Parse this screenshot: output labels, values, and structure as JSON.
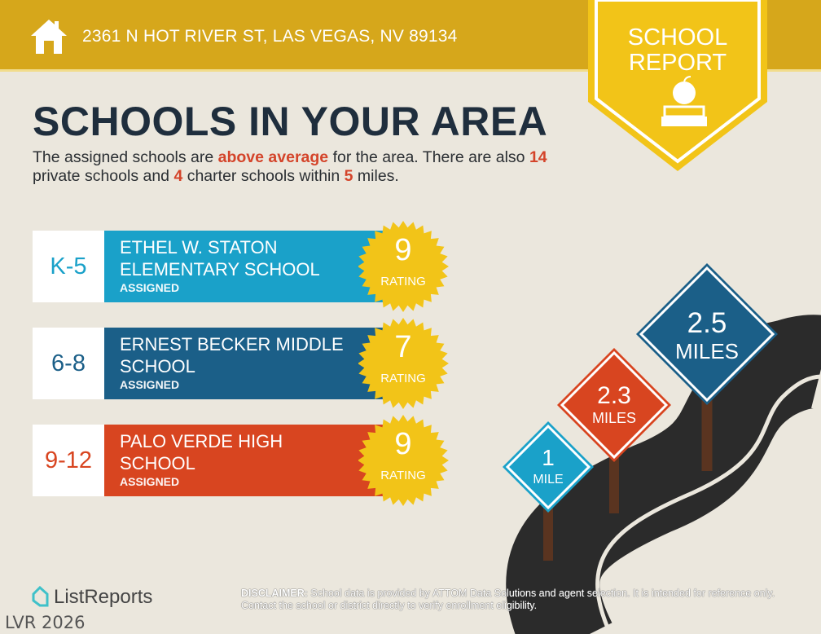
{
  "header": {
    "address": "2361 N HOT RIVER ST, LAS VEGAS, NV 89134",
    "icon": "house-icon",
    "color": "#d6a71b"
  },
  "badge": {
    "line1": "SCHOOL",
    "line2": "REPORT",
    "icon": "apple-on-books-icon",
    "color": "#f2c418"
  },
  "title": "SCHOOLS IN YOUR AREA",
  "intro": {
    "p1": "The assigned schools are ",
    "hl1": "above average",
    "p2": " for the area. There are also ",
    "private_count": "14",
    "p3": " private schools and ",
    "charter_count": "4",
    "p4": " charter schools within ",
    "radius": "5",
    "p5": " miles."
  },
  "schools": [
    {
      "grades": "K-5",
      "name": "ETHEL W. STATON\nELEMENTARY SCHOOL",
      "status": "ASSIGNED",
      "rating": "9",
      "rating_label": "RATING",
      "color": "#1aa1c9"
    },
    {
      "grades": "6-8",
      "name": "ERNEST BECKER MIDDLE\nSCHOOL",
      "status": "ASSIGNED",
      "rating": "7",
      "rating_label": "RATING",
      "color": "#1b5f88"
    },
    {
      "grades": "9-12",
      "name": "PALO VERDE HIGH\nSCHOOL",
      "status": "ASSIGNED",
      "rating": "9",
      "rating_label": "RATING",
      "color": "#d84520"
    }
  ],
  "signs": [
    {
      "value": "1",
      "unit": "MILE",
      "color": "#1aa1c9"
    },
    {
      "value": "2.3",
      "unit": "MILES",
      "color": "#d84520"
    },
    {
      "value": "2.5",
      "unit": "MILES",
      "color": "#1b5f88"
    }
  ],
  "footer": {
    "brand": "ListReports",
    "watermark": "LVR 2026",
    "disclaimer_label": "DISCLAIMER:",
    "disclaimer_text": " School data is provided by ATTOM Data Solutions and agent selection. It is intended for reference only. Contact the school or district directly to verify enrollment eligibility."
  }
}
